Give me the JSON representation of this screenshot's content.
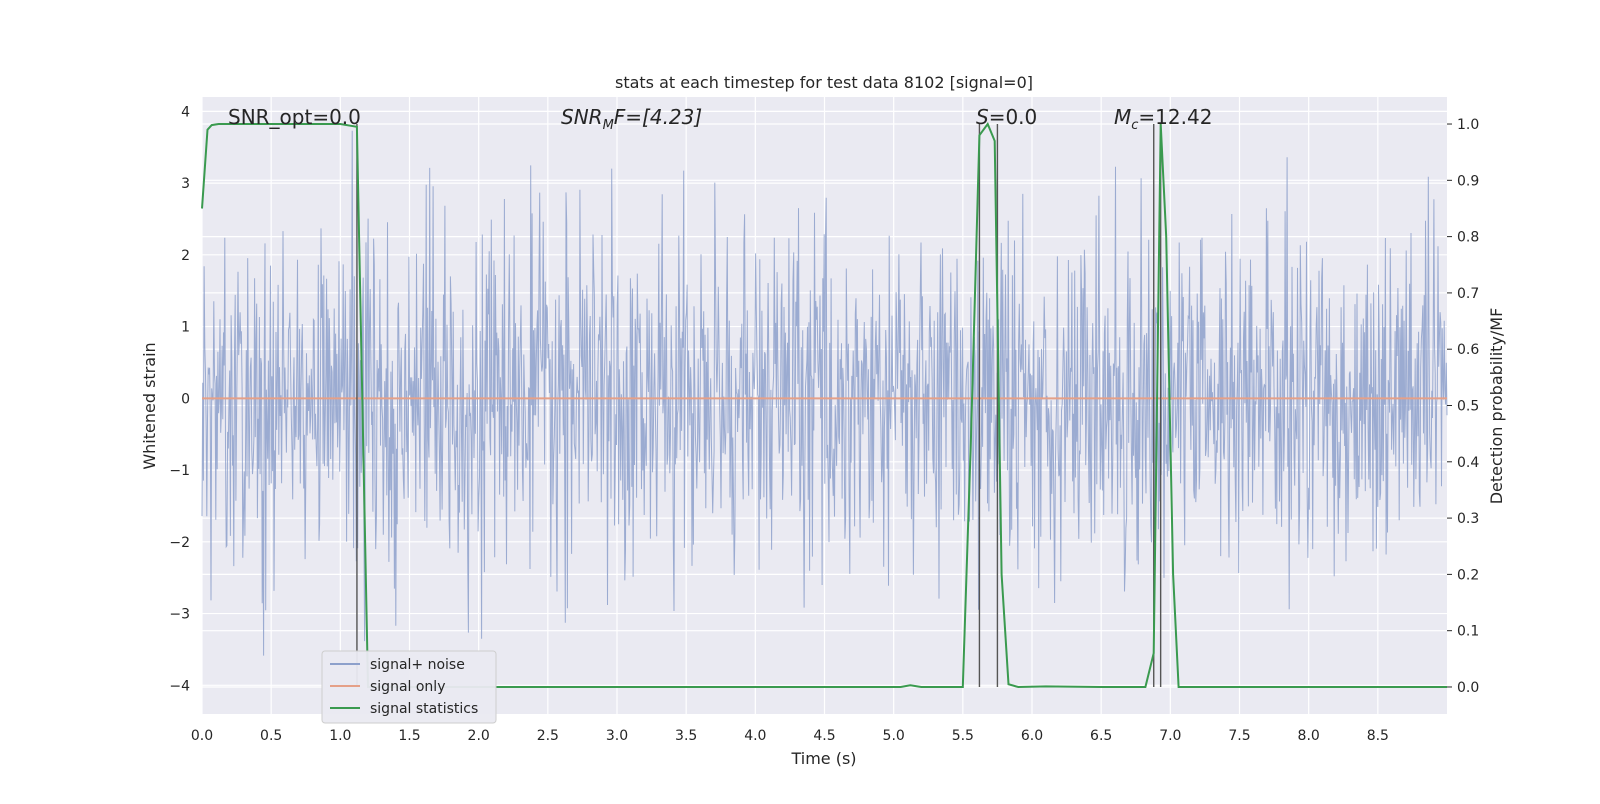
{
  "chart_data": {
    "type": "line",
    "title": "stats at each timestep for test data 8102 [signal=0]",
    "xlabel": "Time (s)",
    "ylabel": "Whitened strain",
    "ylabel_right": "Detection probability/MF",
    "xlim": [
      0.0,
      9.0
    ],
    "ylim": [
      -4.4,
      4.2
    ],
    "ylim_right": [
      -0.048,
      1.048
    ],
    "grid": true,
    "legend_position": "lower-left",
    "x_ticks": [
      "0.0",
      "0.5",
      "1.0",
      "1.5",
      "2.0",
      "2.5",
      "3.0",
      "3.5",
      "4.0",
      "4.5",
      "5.0",
      "5.5",
      "6.0",
      "6.5",
      "7.0",
      "7.5",
      "8.0",
      "8.5"
    ],
    "y_ticks": [
      "−4",
      "−3",
      "−2",
      "−1",
      "0",
      "1",
      "2",
      "3",
      "4"
    ],
    "y_ticks_right": [
      "0.0",
      "0.1",
      "0.2",
      "0.3",
      "0.4",
      "0.5",
      "0.6",
      "0.7",
      "0.8",
      "0.9",
      "1.0"
    ],
    "annotations": {
      "snr_opt": "SNR_opt=0.0",
      "snr_mf_main": "SNR",
      "snr_mf_sub": "M",
      "snr_mf_tail": "F=[4.23]",
      "s_main": "S",
      "s_tail": "=0.0",
      "mc_main": "M",
      "mc_sub": "c",
      "mc_tail": "=12.42"
    },
    "series": [
      {
        "name": "signal+ noise",
        "color": "#8da0cb",
        "description": "whitened noise",
        "amplitude_band": [
          -4.0,
          3.8
        ]
      },
      {
        "name": "signal only",
        "color": "#e5a088",
        "values_constant": 0.0
      },
      {
        "name": "signal statistics",
        "color": "#3a9a4f",
        "axis": "right",
        "x": [
          0.0,
          0.04,
          0.07,
          0.12,
          1.0,
          1.12,
          1.2,
          1.3,
          2.0,
          3.0,
          4.0,
          4.8,
          5.05,
          5.12,
          5.2,
          5.5,
          5.56,
          5.62,
          5.68,
          5.73,
          5.78,
          5.83,
          5.9,
          6.1,
          6.5,
          6.82,
          6.88,
          6.93,
          6.97,
          7.02,
          7.06,
          7.5,
          8.0,
          9.0
        ],
        "y": [
          0.85,
          0.99,
          0.998,
          1.0,
          1.0,
          0.995,
          0.0,
          0.0,
          0.0,
          0.0,
          0.0,
          0.0,
          0.0,
          0.003,
          0.0,
          0.0,
          0.45,
          0.98,
          1.0,
          0.97,
          0.2,
          0.005,
          0.0,
          0.001,
          0.0,
          0.0,
          0.06,
          1.0,
          0.8,
          0.2,
          0.0,
          0.0,
          0.0,
          0.0
        ]
      }
    ],
    "vertical_markers": [
      1.12,
      5.62,
      5.75,
      6.88,
      6.93
    ],
    "legend": [
      "signal+ noise",
      "signal only",
      "signal statistics"
    ]
  }
}
